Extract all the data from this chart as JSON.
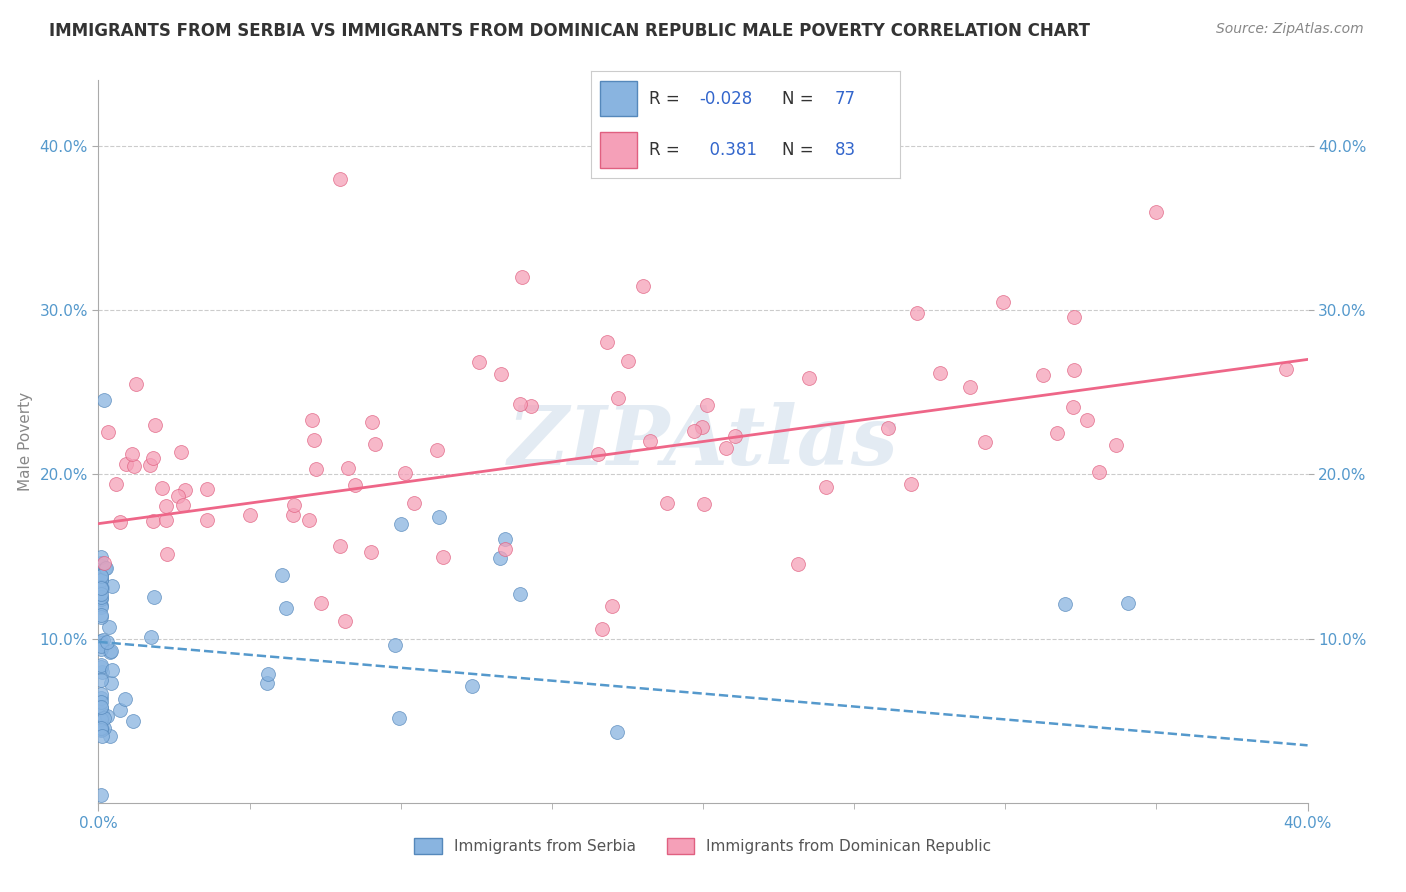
{
  "title": "IMMIGRANTS FROM SERBIA VS IMMIGRANTS FROM DOMINICAN REPUBLIC MALE POVERTY CORRELATION CHART",
  "source": "Source: ZipAtlas.com",
  "ylabel": "Male Poverty",
  "xlim": [
    0.0,
    0.4
  ],
  "ylim": [
    0.0,
    0.44
  ],
  "y_ticks": [
    0.1,
    0.2,
    0.3,
    0.4
  ],
  "y_tick_labels": [
    "10.0%",
    "20.0%",
    "30.0%",
    "40.0%"
  ],
  "x_tick_labels": [
    "0.0%",
    "40.0%"
  ],
  "grid_color": "#cccccc",
  "background_color": "#ffffff",
  "serbia_dot_color": "#89b4e0",
  "serbia_dot_edge": "#5588bb",
  "dr_dot_color": "#f5a0b8",
  "dr_dot_edge": "#e06080",
  "serbia_line_color": "#5599cc",
  "dr_line_color": "#ee6688",
  "serbia_R": -0.028,
  "serbia_N": 77,
  "dr_R": 0.381,
  "dr_N": 83,
  "legend_label_serbia": "Immigrants from Serbia",
  "legend_label_dr": "Immigrants from Dominican Republic",
  "watermark": "ZIPAtlas",
  "tick_color": "#5599cc",
  "serbia_line_start_y": 0.098,
  "serbia_line_end_y": 0.035,
  "dr_line_start_y": 0.17,
  "dr_line_end_y": 0.27
}
